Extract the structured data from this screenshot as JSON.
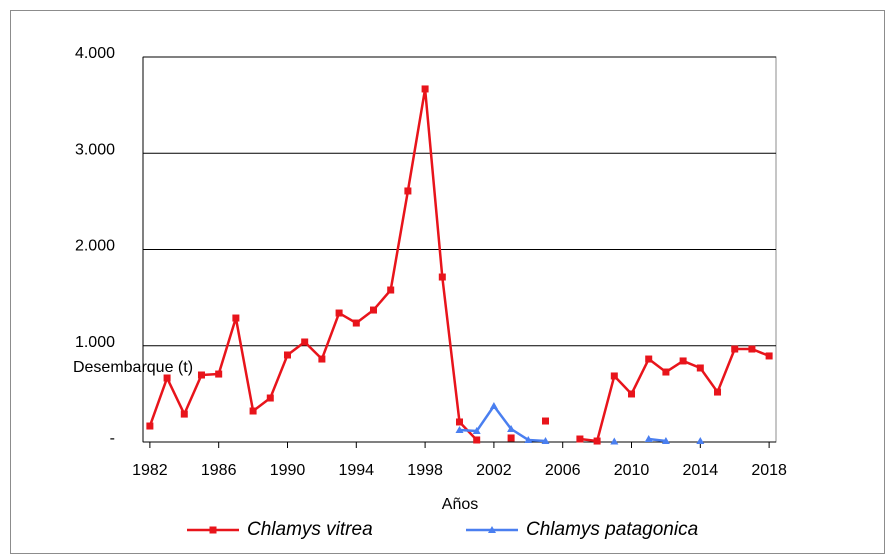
{
  "chart_data": {
    "type": "line",
    "x_label": "Años",
    "y_label": "Desembarque (t)",
    "x": [
      1982,
      1983,
      1984,
      1985,
      1986,
      1987,
      1988,
      1989,
      1990,
      1991,
      1992,
      1993,
      1994,
      1995,
      1996,
      1997,
      1998,
      1999,
      2000,
      2001,
      2002,
      2003,
      2004,
      2005,
      2006,
      2007,
      2008,
      2009,
      2010,
      2011,
      2012,
      2013,
      2014,
      2015,
      2016,
      2017,
      2018
    ],
    "xlim": [
      1981.6,
      2018.4
    ],
    "xticks": [
      1982,
      1986,
      1990,
      1994,
      1998,
      2002,
      2006,
      2010,
      2014,
      2018
    ],
    "ylim": [
      0,
      4000
    ],
    "yticks": [
      {
        "value": 0,
        "label": "-"
      },
      {
        "value": 1000,
        "label": "1.000"
      },
      {
        "value": 2000,
        "label": "2.000"
      },
      {
        "value": 3000,
        "label": "3.000"
      },
      {
        "value": 4000,
        "label": "4.000"
      }
    ],
    "grid": true,
    "series": [
      {
        "name": "Chlamys vitrea",
        "color": "#e8141b",
        "marker": "square",
        "values": [
          166,
          665,
          290,
          696,
          706,
          1288,
          322,
          457,
          904,
          1039,
          862,
          1340,
          1236,
          1371,
          1579,
          2608,
          3668,
          1714,
          208,
          21,
          null,
          42,
          null,
          218,
          null,
          31,
          10,
          686,
          499,
          862,
          727,
          842,
          769,
          519,
          966,
          966,
          894
        ]
      },
      {
        "name": "Chlamys patagonica",
        "color": "#4a7ff0",
        "marker": "triangle",
        "values": [
          null,
          null,
          null,
          null,
          null,
          null,
          null,
          null,
          null,
          null,
          null,
          null,
          null,
          null,
          null,
          null,
          null,
          null,
          125,
          114,
          374,
          135,
          21,
          10,
          null,
          null,
          null,
          5,
          null,
          31,
          10,
          null,
          10,
          null,
          null,
          null,
          null
        ]
      }
    ]
  }
}
